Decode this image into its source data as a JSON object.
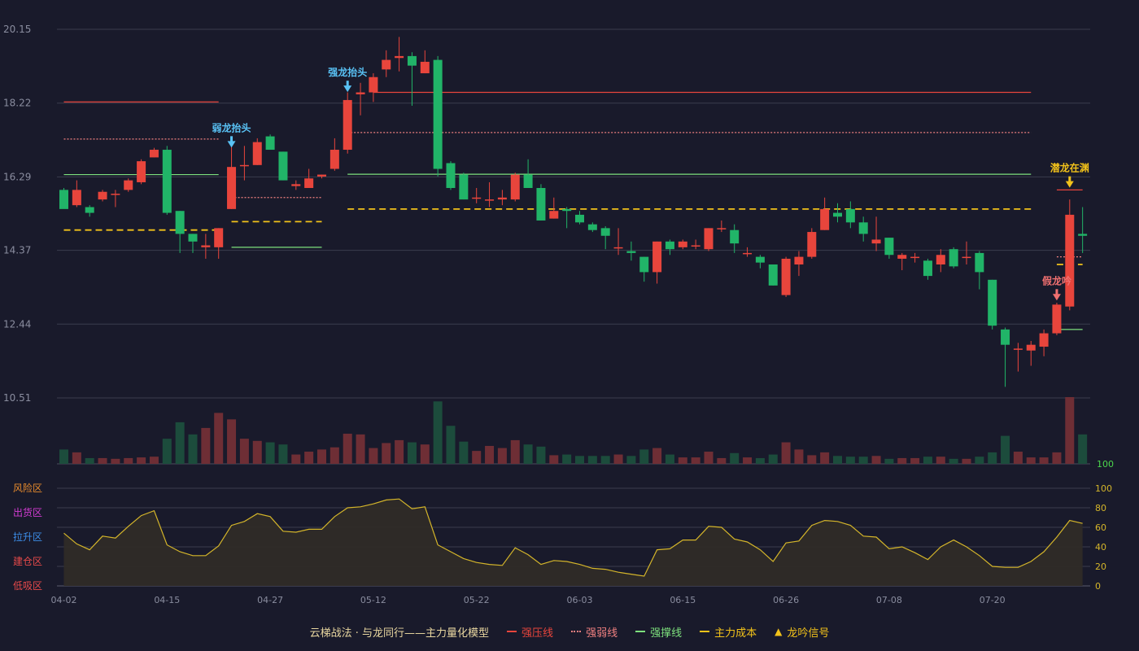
{
  "colors": {
    "background": "#191a2b",
    "up": "#e8453c",
    "down": "#21b468",
    "volume_up": "#6e2e35",
    "volume_down": "#1c4c3c",
    "grid": "#3a3c4e",
    "axis_text": "#8a8d9f",
    "pressure": "#e8453c",
    "weak": "#f08080",
    "support": "#7de07d",
    "cost": "#f2c21a",
    "osc_line": "#d4b52a",
    "osc_fill": "#2f2b27",
    "signal_blue": "#59c2f5",
    "signal_gold": "#f2c21a",
    "signal_red": "#f07070"
  },
  "chart_data": {
    "type": "candlestick",
    "x_tick_labels": [
      "04-02",
      "04-15",
      "04-27",
      "05-12",
      "05-22",
      "06-03",
      "06-15",
      "06-26",
      "07-08",
      "07-20"
    ],
    "x_tick_index": [
      0,
      8,
      16,
      24,
      32,
      40,
      48,
      56,
      64,
      72
    ],
    "price_axis": {
      "ticks": [
        "20.15",
        "18.22",
        "16.29",
        "14.37",
        "12.44",
        "10.51"
      ],
      "ylim": [
        10.51,
        20.15
      ]
    },
    "candles": [
      [
        15.95,
        15.45,
        15.5,
        16.0
      ],
      [
        15.55,
        15.95,
        15.5,
        16.2
      ],
      [
        15.5,
        15.35,
        15.25,
        15.55
      ],
      [
        15.7,
        15.9,
        15.65,
        15.95
      ],
      [
        15.85,
        15.85,
        15.5,
        15.95
      ],
      [
        15.95,
        16.2,
        15.9,
        16.25
      ],
      [
        16.15,
        16.7,
        16.1,
        16.75
      ],
      [
        16.8,
        17.0,
        16.8,
        17.05
      ],
      [
        17.0,
        15.35,
        15.3,
        17.1
      ],
      [
        15.4,
        14.8,
        14.3,
        15.4
      ],
      [
        14.8,
        14.6,
        14.3,
        14.8
      ],
      [
        14.45,
        14.5,
        14.15,
        14.8
      ],
      [
        14.45,
        14.95,
        14.15,
        14.95
      ],
      [
        15.45,
        16.55,
        15.45,
        17.15
      ],
      [
        16.6,
        16.6,
        16.2,
        17.1
      ],
      [
        16.6,
        17.2,
        16.6,
        17.3
      ],
      [
        17.35,
        17.0,
        17.0,
        17.4
      ],
      [
        16.95,
        16.2,
        16.2,
        16.95
      ],
      [
        16.05,
        16.1,
        15.95,
        16.2
      ],
      [
        16.0,
        16.25,
        16.0,
        16.5
      ],
      [
        16.3,
        16.35,
        16.25,
        16.35
      ],
      [
        16.5,
        17.0,
        16.45,
        17.3
      ],
      [
        17.0,
        18.3,
        16.9,
        18.5
      ],
      [
        18.45,
        18.5,
        17.9,
        18.75
      ],
      [
        18.5,
        18.9,
        18.25,
        19.0
      ],
      [
        19.1,
        19.35,
        18.9,
        19.6
      ],
      [
        19.4,
        19.45,
        19.05,
        19.95
      ],
      [
        19.45,
        19.2,
        18.15,
        19.55
      ],
      [
        19.0,
        19.3,
        19.0,
        19.6
      ],
      [
        19.35,
        16.5,
        16.3,
        19.45
      ],
      [
        16.65,
        16.0,
        15.95,
        16.7
      ],
      [
        16.35,
        15.7,
        15.7,
        16.4
      ],
      [
        15.75,
        15.75,
        15.6,
        16.0
      ],
      [
        15.7,
        15.7,
        15.5,
        16.15
      ],
      [
        15.7,
        15.75,
        15.55,
        15.95
      ],
      [
        15.7,
        16.35,
        15.65,
        16.4
      ],
      [
        16.35,
        16.0,
        16.0,
        16.75
      ],
      [
        16.0,
        15.15,
        15.15,
        16.1
      ],
      [
        15.2,
        15.4,
        15.2,
        15.75
      ],
      [
        15.45,
        15.4,
        14.95,
        15.5
      ],
      [
        15.3,
        15.1,
        15.05,
        15.4
      ],
      [
        15.05,
        14.9,
        14.85,
        15.1
      ],
      [
        14.95,
        14.75,
        14.4,
        15.0
      ],
      [
        14.45,
        14.45,
        14.25,
        14.95
      ],
      [
        14.35,
        14.3,
        14.1,
        14.6
      ],
      [
        14.2,
        13.8,
        13.55,
        14.2
      ],
      [
        13.8,
        14.6,
        13.5,
        14.6
      ],
      [
        14.6,
        14.4,
        14.25,
        14.65
      ],
      [
        14.45,
        14.6,
        14.4,
        14.65
      ],
      [
        14.5,
        14.5,
        14.4,
        14.65
      ],
      [
        14.4,
        14.95,
        14.35,
        14.95
      ],
      [
        14.95,
        14.95,
        14.85,
        15.15
      ],
      [
        14.9,
        14.55,
        14.3,
        15.05
      ],
      [
        14.3,
        14.3,
        14.2,
        14.45
      ],
      [
        14.2,
        14.05,
        13.9,
        14.25
      ],
      [
        14.0,
        13.45,
        13.45,
        14.0
      ],
      [
        13.2,
        14.15,
        13.15,
        14.2
      ],
      [
        14.0,
        14.2,
        13.7,
        14.35
      ],
      [
        14.2,
        14.85,
        14.15,
        14.95
      ],
      [
        14.9,
        15.45,
        14.9,
        15.75
      ],
      [
        15.35,
        15.25,
        15.1,
        15.6
      ],
      [
        15.45,
        15.1,
        14.95,
        15.65
      ],
      [
        15.1,
        14.8,
        14.6,
        15.25
      ],
      [
        14.55,
        14.65,
        14.35,
        15.25
      ],
      [
        14.7,
        14.25,
        14.15,
        14.7
      ],
      [
        14.15,
        14.25,
        13.85,
        14.3
      ],
      [
        14.2,
        14.2,
        14.05,
        14.3
      ],
      [
        14.1,
        13.7,
        13.6,
        14.15
      ],
      [
        14.0,
        14.25,
        13.8,
        14.4
      ],
      [
        14.4,
        13.95,
        13.9,
        14.45
      ],
      [
        14.2,
        14.2,
        14.0,
        14.6
      ],
      [
        14.3,
        13.8,
        13.35,
        14.35
      ],
      [
        13.6,
        12.4,
        12.3,
        13.6
      ],
      [
        12.3,
        11.9,
        10.8,
        12.35
      ],
      [
        11.8,
        11.8,
        11.2,
        11.95
      ],
      [
        11.75,
        11.9,
        11.35,
        12.0
      ],
      [
        11.85,
        12.2,
        11.6,
        12.3
      ],
      [
        12.2,
        12.95,
        12.15,
        13.0
      ],
      [
        12.9,
        15.3,
        12.8,
        15.7
      ],
      [
        14.8,
        14.75,
        14.3,
        15.5
      ]
    ],
    "volume": [
      20,
      16,
      8,
      8,
      7,
      8,
      9,
      10,
      35,
      58,
      41,
      50,
      71,
      62,
      35,
      32,
      30,
      27,
      13,
      17,
      20,
      23,
      42,
      41,
      22,
      29,
      33,
      30,
      27,
      87,
      53,
      31,
      18,
      25,
      22,
      33,
      27,
      24,
      12,
      13,
      11,
      11,
      11,
      13,
      11,
      20,
      22,
      13,
      9,
      9,
      17,
      8,
      15,
      9,
      8,
      13,
      30,
      20,
      12,
      16,
      11,
      10,
      10,
      11,
      7,
      8,
      8,
      10,
      10,
      7,
      7,
      10,
      16,
      39,
      17,
      9,
      9,
      16,
      93,
      41
    ],
    "volume_axis_max_label": "100",
    "oscillator": {
      "values": [
        54,
        43,
        37,
        51,
        49,
        61,
        72,
        77,
        42,
        35,
        31,
        31,
        41,
        62,
        66,
        74,
        71,
        56,
        55,
        58,
        58,
        71,
        80,
        81,
        84,
        88,
        89,
        79,
        81,
        42,
        35,
        28,
        24,
        22,
        21,
        39,
        32,
        22,
        26,
        25,
        22,
        18,
        17,
        14,
        12,
        10,
        37,
        38,
        47,
        47,
        61,
        60,
        48,
        45,
        37,
        25,
        44,
        46,
        62,
        67,
        66,
        62,
        51,
        50,
        38,
        40,
        34,
        27,
        40,
        47,
        40,
        31,
        20,
        19,
        19,
        25,
        35,
        50,
        67,
        64
      ],
      "right_ticks": [
        "100",
        "80",
        "60",
        "40",
        "20",
        "0"
      ],
      "zones": [
        "风险区",
        "出货区",
        "拉升区",
        "建仓区",
        "低吸区"
      ],
      "zone_colors": [
        "#e88b2c",
        "#d23cd2",
        "#3c8de8",
        "#e84a4a",
        "#e84a4a"
      ]
    },
    "lines": {
      "pressure": [
        [
          0,
          12,
          18.25
        ],
        [
          24,
          75,
          18.5
        ],
        [
          77,
          79,
          15.95
        ]
      ],
      "weak": [
        [
          0,
          12,
          17.28
        ],
        [
          13,
          20,
          15.75
        ],
        [
          22,
          75,
          17.45
        ],
        [
          77,
          79,
          14.2
        ]
      ],
      "support": [
        [
          0,
          12,
          16.35
        ],
        [
          13,
          20,
          14.45
        ],
        [
          22,
          75,
          16.36
        ],
        [
          77,
          79,
          12.3
        ]
      ],
      "cost": [
        [
          0,
          12,
          14.9
        ],
        [
          13,
          20,
          15.12
        ],
        [
          22,
          75,
          15.45
        ],
        [
          77,
          79,
          14.0
        ]
      ]
    },
    "signals": [
      {
        "index": 13,
        "price": 17.1,
        "label": "弱龙抬头",
        "color": "signal_blue"
      },
      {
        "index": 22,
        "price": 18.55,
        "label": "强龙抬头",
        "color": "signal_blue"
      },
      {
        "index": 77,
        "price": 13.1,
        "label": "假龙吟",
        "color": "signal_red"
      },
      {
        "index": 78,
        "price": 16.05,
        "label": "潜龙在渊",
        "color": "signal_gold"
      }
    ]
  },
  "legend": {
    "title": "云梯战法 · 与龙同行——主力量化模型",
    "items": [
      {
        "label": "强压线",
        "style": "solid",
        "color": "#e8453c"
      },
      {
        "label": "强弱线",
        "style": "dotted",
        "color": "#f08080"
      },
      {
        "label": "强撑线",
        "style": "solid",
        "color": "#7de07d"
      },
      {
        "label": "主力成本",
        "style": "dashed",
        "color": "#f2c21a"
      },
      {
        "label": "龙吟信号",
        "style": "triangle",
        "color": "#f2c21a"
      }
    ]
  }
}
